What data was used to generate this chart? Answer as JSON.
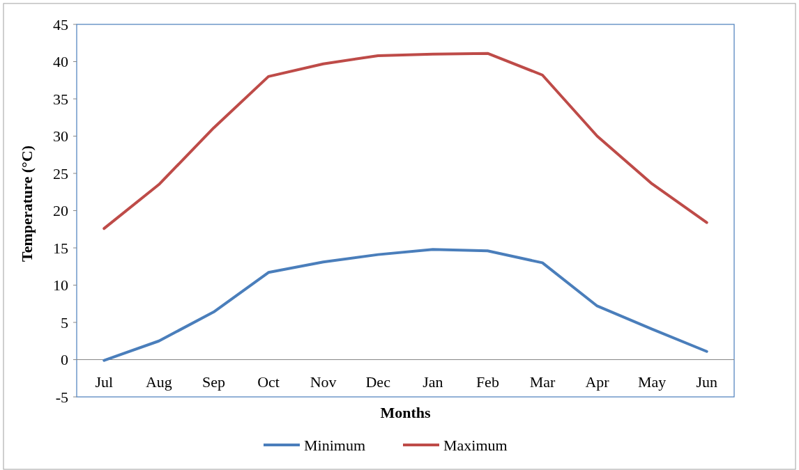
{
  "chart_data": {
    "type": "line",
    "xlabel": "Months",
    "ylabel": "Temperature (°C)",
    "categories": [
      "Jul",
      "Aug",
      "Sep",
      "Oct",
      "Nov",
      "Dec",
      "Jan",
      "Feb",
      "Mar",
      "Apr",
      "May",
      "Jun"
    ],
    "series": [
      {
        "name": "Minimum",
        "color": "#4a7ebb",
        "values": [
          -0.1,
          2.5,
          6.4,
          11.7,
          13.1,
          14.1,
          14.8,
          14.6,
          13.0,
          7.2,
          4.1,
          1.1
        ]
      },
      {
        "name": "Maximum",
        "color": "#be4b48",
        "values": [
          17.6,
          23.5,
          31.1,
          38.0,
          39.7,
          40.8,
          41.0,
          41.1,
          38.2,
          30.0,
          23.6,
          18.4
        ]
      }
    ],
    "ylim": [
      -5,
      45
    ],
    "yticks": [
      -5,
      0,
      5,
      10,
      15,
      20,
      25,
      30,
      35,
      40,
      45
    ],
    "legend": "bottom",
    "marker": "none",
    "line_style": "solid"
  }
}
